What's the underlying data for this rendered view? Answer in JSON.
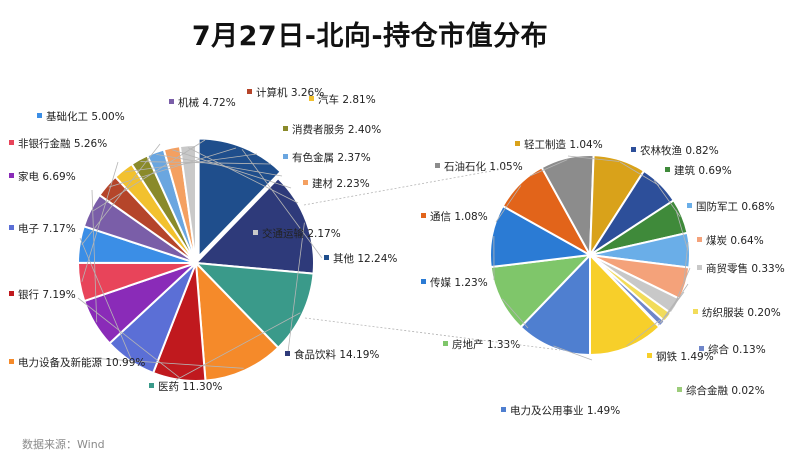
{
  "title": "7月27日-北向-持仓市值分布",
  "source": "数据来源：Wind",
  "colors": {
    "leader_line": "#b5b5b5",
    "slice_border": "#ffffff"
  },
  "chart_data": [
    {
      "type": "pie",
      "name": "main",
      "slices": [
        {
          "label": "其他",
          "value": 12.24,
          "display": "12.24%",
          "color": "#1f4e8c"
        },
        {
          "label": "食品饮料",
          "value": 14.19,
          "display": "14.19%",
          "color": "#2e3a7a"
        },
        {
          "label": "医药",
          "value": 11.3,
          "display": "11.30%",
          "color": "#3a9a8a"
        },
        {
          "label": "电力设备及新能源",
          "value": 10.99,
          "display": "10.99%",
          "color": "#f58a2a"
        },
        {
          "label": "银行",
          "value": 7.19,
          "display": "7.19%",
          "color": "#c0191e"
        },
        {
          "label": "电子",
          "value": 7.17,
          "display": "7.17%",
          "color": "#5b6fd6"
        },
        {
          "label": "家电",
          "value": 6.69,
          "display": "6.69%",
          "color": "#8a2bb8"
        },
        {
          "label": "非银行金融",
          "value": 5.26,
          "display": "5.26%",
          "color": "#e8445a"
        },
        {
          "label": "基础化工",
          "value": 5.0,
          "display": "5.00%",
          "color": "#3b8ee6"
        },
        {
          "label": "机械",
          "value": 4.72,
          "display": "4.72%",
          "color": "#7a5ea8"
        },
        {
          "label": "计算机",
          "value": 3.26,
          "display": "3.26%",
          "color": "#b5452a"
        },
        {
          "label": "汽车",
          "value": 2.81,
          "display": "2.81%",
          "color": "#f2c12e"
        },
        {
          "label": "消费者服务",
          "value": 2.4,
          "display": "2.40%",
          "color": "#8a8a2a"
        },
        {
          "label": "有色金属",
          "value": 2.37,
          "display": "2.37%",
          "color": "#6aa6e0"
        },
        {
          "label": "建材",
          "value": 2.23,
          "display": "2.23%",
          "color": "#f4a061"
        },
        {
          "label": "交通运输",
          "value": 2.17,
          "display": "2.17%",
          "color": "#c9c9c9"
        }
      ]
    },
    {
      "type": "pie",
      "name": "other-breakdown",
      "slices": [
        {
          "label": "电力及公用事业",
          "value": 1.49,
          "display": "1.49%",
          "color": "#4f7fd0"
        },
        {
          "label": "房地产",
          "value": 1.33,
          "display": "1.33%",
          "color": "#7fc66a"
        },
        {
          "label": "传媒",
          "value": 1.23,
          "display": "1.23%",
          "color": "#2b7bd4"
        },
        {
          "label": "通信",
          "value": 1.08,
          "display": "1.08%",
          "color": "#e2641a"
        },
        {
          "label": "石油石化",
          "value": 1.05,
          "display": "1.05%",
          "color": "#8c8c8c"
        },
        {
          "label": "轻工制造",
          "value": 1.04,
          "display": "1.04%",
          "color": "#d9a21a"
        },
        {
          "label": "农林牧渔",
          "value": 0.82,
          "display": "0.82%",
          "color": "#2d4f9a"
        },
        {
          "label": "建筑",
          "value": 0.69,
          "display": "0.69%",
          "color": "#3f8a3a"
        },
        {
          "label": "国防军工",
          "value": 0.68,
          "display": "0.68%",
          "color": "#6aaee8"
        },
        {
          "label": "煤炭",
          "value": 0.64,
          "display": "0.64%",
          "color": "#f4a27a"
        },
        {
          "label": "商贸零售",
          "value": 0.33,
          "display": "0.33%",
          "color": "#c8c8c8"
        },
        {
          "label": "纺织服装",
          "value": 0.2,
          "display": "0.20%",
          "color": "#f2dc5a"
        },
        {
          "label": "综合",
          "value": 0.13,
          "display": "0.13%",
          "color": "#6f86c9"
        },
        {
          "label": "综合金融",
          "value": 0.02,
          "display": "0.02%",
          "color": "#9ccc7a"
        },
        {
          "label": "钢铁",
          "value": 1.49,
          "display": "1.49%",
          "color": "#f7cf2a"
        }
      ]
    }
  ]
}
